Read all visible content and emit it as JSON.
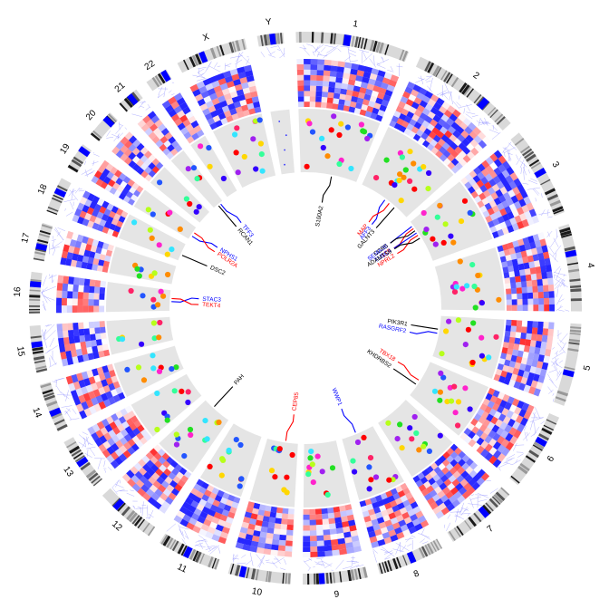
{
  "chromosomes": [
    {
      "name": "1",
      "size": 249
    },
    {
      "name": "2",
      "size": 243
    },
    {
      "name": "3",
      "size": 198
    },
    {
      "name": "4",
      "size": 191
    },
    {
      "name": "5",
      "size": 181
    },
    {
      "name": "6",
      "size": 171
    },
    {
      "name": "7",
      "size": 159
    },
    {
      "name": "8",
      "size": 146
    },
    {
      "name": "9",
      "size": 141
    },
    {
      "name": "10",
      "size": 136
    },
    {
      "name": "11",
      "size": 135
    },
    {
      "name": "12",
      "size": 133
    },
    {
      "name": "13",
      "size": 115
    },
    {
      "name": "14",
      "size": 107
    },
    {
      "name": "15",
      "size": 102
    },
    {
      "name": "16",
      "size": 90
    },
    {
      "name": "17",
      "size": 81
    },
    {
      "name": "18",
      "size": 78
    },
    {
      "name": "19",
      "size": 59
    },
    {
      "name": "20",
      "size": 63
    },
    {
      "name": "21",
      "size": 48
    },
    {
      "name": "22",
      "size": 51
    },
    {
      "name": "X",
      "size": 155
    },
    {
      "name": "Y",
      "size": 57
    }
  ],
  "genes": [
    {
      "label": "S100A2",
      "chrom": "1",
      "pos": 0.55,
      "color": "#000000"
    },
    {
      "label": "GALNT3",
      "chrom": "2",
      "pos": 0.72,
      "color": "#000000"
    },
    {
      "label": "AFF3",
      "chrom": "2",
      "pos": 0.5,
      "color": "#0000ff"
    },
    {
      "label": "MAP",
      "chrom": "2",
      "pos": 0.6,
      "color": "#ff0000"
    },
    {
      "label": "SEMA3B",
      "chrom": "3",
      "pos": 0.1,
      "color": "#0000ff"
    },
    {
      "label": "LTF",
      "chrom": "3",
      "pos": 0.16,
      "color": "#ff0000"
    },
    {
      "label": "CCR5",
      "chrom": "3",
      "pos": 0.22,
      "color": "#000000"
    },
    {
      "label": "TUSC4",
      "chrom": "3",
      "pos": 0.28,
      "color": "#0000ff"
    },
    {
      "label": "NPRL2",
      "chrom": "3",
      "pos": 0.34,
      "color": "#ff0000"
    },
    {
      "label": "ADAMTS9",
      "chrom": "3",
      "pos": 0.42,
      "color": "#000000"
    },
    {
      "label": "PIK3R1",
      "chrom": "5",
      "pos": 0.33,
      "color": "#000000"
    },
    {
      "label": "RASGRF2",
      "chrom": "5",
      "pos": 0.43,
      "color": "#0000ff"
    },
    {
      "label": "TBX18",
      "chrom": "6",
      "pos": 0.55,
      "color": "#ff0000"
    },
    {
      "label": "KHDRBS2",
      "chrom": "6",
      "pos": 0.68,
      "color": "#000000"
    },
    {
      "label": "WWP1",
      "chrom": "8",
      "pos": 0.55,
      "color": "#0000ff"
    },
    {
      "label": "CEP85",
      "chrom": "10",
      "pos": 0.4,
      "color": "#ff0000"
    },
    {
      "label": "PAH",
      "chrom": "12",
      "pos": 0.65,
      "color": "#000000"
    },
    {
      "label": "STAC3",
      "chrom": "16",
      "pos": 0.45,
      "color": "#0000ff"
    },
    {
      "label": "TEKT4",
      "chrom": "16",
      "pos": 0.6,
      "color": "#ff0000"
    },
    {
      "label": "DSC2",
      "chrom": "18",
      "pos": 0.35,
      "color": "#000000"
    },
    {
      "label": "NPHS1",
      "chrom": "19",
      "pos": 0.3,
      "color": "#0000ff"
    },
    {
      "label": "POLR2A",
      "chrom": "19",
      "pos": 0.6,
      "color": "#ff0000"
    },
    {
      "label": "RCAN1",
      "chrom": "21",
      "pos": 0.45,
      "color": "#000000"
    },
    {
      "label": "TFF3",
      "chrom": "21",
      "pos": 0.7,
      "color": "#0000ff"
    }
  ]
}
